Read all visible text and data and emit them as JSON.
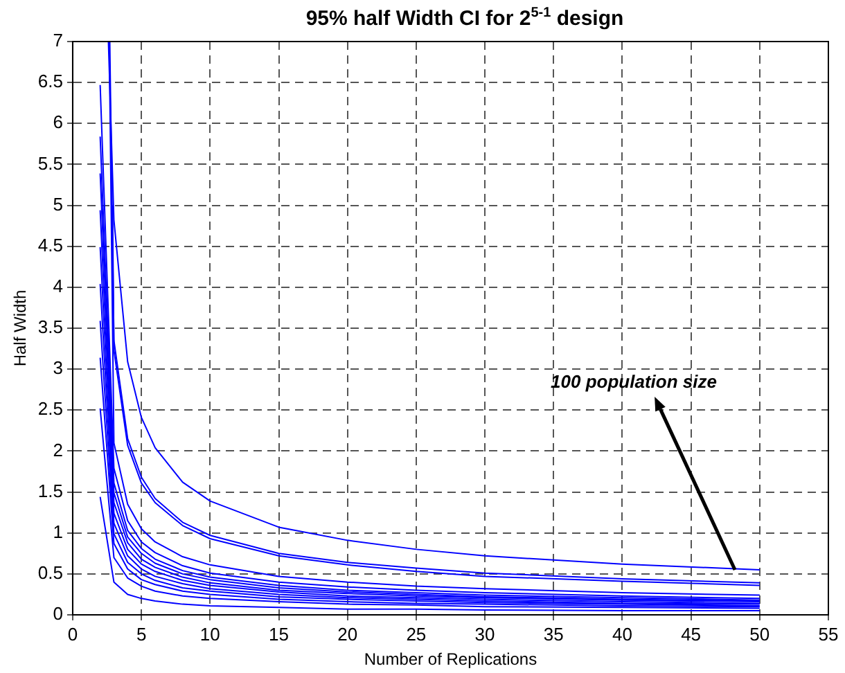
{
  "chart_data": {
    "type": "line",
    "title": "95% half Width CI for 2$^{5-1}$ design",
    "xlabel": "Number of Replications",
    "ylabel": "Half Width",
    "x": [
      2,
      3,
      4,
      5,
      6,
      8,
      10,
      15,
      20,
      25,
      30,
      40,
      50
    ],
    "series": [
      {
        "color": "#0000ff",
        "x": [
          2.6,
          3,
          4,
          5,
          6,
          8,
          10,
          15,
          20,
          25,
          30,
          40,
          50
        ],
        "values": [
          7,
          4.82,
          3.09,
          2.41,
          2.04,
          1.62,
          1.39,
          1.07,
          0.91,
          0.8,
          0.72,
          0.62,
          0.55
        ]
      },
      {
        "color": "#0000ff",
        "x": [
          2.7,
          3,
          4,
          5,
          6,
          8,
          10,
          15,
          20,
          25,
          30,
          40,
          50
        ],
        "values": [
          7,
          3.35,
          2.15,
          1.68,
          1.42,
          1.13,
          0.97,
          0.75,
          0.64,
          0.57,
          0.51,
          0.44,
          0.39
        ]
      },
      {
        "color": "#0000ff",
        "x": [
          2.9,
          3,
          4,
          5,
          6,
          8,
          10,
          15,
          20,
          25,
          30,
          40,
          50
        ],
        "values": [
          5,
          3.23,
          2.07,
          1.61,
          1.37,
          1.09,
          0.93,
          0.72,
          0.61,
          0.53,
          0.47,
          0.41,
          0.36
        ]
      },
      {
        "color": "#0000ff",
        "x": [
          2.66,
          3,
          4,
          5,
          6,
          8,
          10,
          15,
          20,
          25,
          30,
          40,
          50
        ],
        "values": [
          7,
          2.1,
          1.35,
          1.05,
          0.89,
          0.71,
          0.61,
          0.47,
          0.4,
          0.35,
          0.32,
          0.27,
          0.24
        ]
      },
      {
        "color": "#0000ff",
        "values": [
          6.47,
          1.79,
          1.15,
          0.89,
          0.76,
          0.6,
          0.51,
          0.4,
          0.34,
          0.3,
          0.27,
          0.23,
          0.2
        ]
      },
      {
        "color": "#0000ff",
        "values": [
          5.84,
          1.61,
          1.03,
          0.81,
          0.68,
          0.54,
          0.46,
          0.36,
          0.3,
          0.27,
          0.24,
          0.21,
          0.18
        ]
      },
      {
        "color": "#0000ff",
        "values": [
          5.39,
          1.49,
          0.95,
          0.75,
          0.63,
          0.5,
          0.43,
          0.33,
          0.28,
          0.25,
          0.22,
          0.19,
          0.17
        ]
      },
      {
        "color": "#0000ff",
        "values": [
          4.94,
          1.37,
          0.88,
          0.68,
          0.58,
          0.46,
          0.39,
          0.3,
          0.26,
          0.23,
          0.21,
          0.18,
          0.16
        ]
      },
      {
        "color": "#0000ff",
        "values": [
          4.49,
          1.24,
          0.8,
          0.62,
          0.53,
          0.42,
          0.36,
          0.28,
          0.23,
          0.21,
          0.19,
          0.16,
          0.14
        ]
      },
      {
        "color": "#0000ff",
        "values": [
          4.04,
          1.12,
          0.72,
          0.56,
          0.47,
          0.38,
          0.32,
          0.25,
          0.21,
          0.19,
          0.17,
          0.14,
          0.13
        ]
      },
      {
        "color": "#0000ff",
        "values": [
          3.59,
          0.99,
          0.64,
          0.5,
          0.42,
          0.33,
          0.29,
          0.22,
          0.19,
          0.17,
          0.15,
          0.13,
          0.11
        ]
      },
      {
        "color": "#0000ff",
        "values": [
          3.14,
          0.87,
          0.56,
          0.43,
          0.37,
          0.29,
          0.25,
          0.19,
          0.16,
          0.14,
          0.13,
          0.11,
          0.1
        ]
      },
      {
        "color": "#0000ff",
        "values": [
          2.52,
          0.7,
          0.45,
          0.35,
          0.29,
          0.23,
          0.2,
          0.16,
          0.13,
          0.12,
          0.1,
          0.09,
          0.08
        ]
      },
      {
        "color": "#0000ff",
        "values": [
          1.44,
          0.4,
          0.25,
          0.2,
          0.17,
          0.13,
          0.11,
          0.09,
          0.07,
          0.07,
          0.06,
          0.05,
          0.05
        ]
      }
    ],
    "xlim": [
      0,
      55
    ],
    "xticks": [
      0,
      5,
      10,
      15,
      20,
      25,
      30,
      35,
      40,
      45,
      50,
      55
    ],
    "ylim": [
      0,
      7
    ],
    "yticks": [
      0,
      0.5,
      1,
      1.5,
      2,
      2.5,
      3,
      3.5,
      4,
      4.5,
      5,
      5.5,
      6,
      6.5,
      7
    ],
    "grid": true,
    "legend": false,
    "marker": "none",
    "line_style": "solid",
    "annotations": [
      {
        "text": "100 population size",
        "x": 48.2,
        "y": 0.55
      }
    ]
  }
}
